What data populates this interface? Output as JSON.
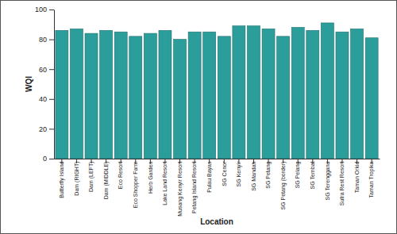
{
  "chart_data": {
    "type": "bar",
    "x_label": "Location",
    "y_label": "WQI",
    "categories": [
      "Butterfly Island",
      "Dam (RIGHT)",
      "Dam (LEFT)",
      "Dam (MIDDLE)",
      "Eco Resort",
      "Eco Shopper Farm",
      "Herb Garden",
      "Lake Land Resort",
      "Musang Kenyir Resort",
      "Petang Island Resort",
      "Pulau Bayas",
      "SG Cenor",
      "SG Kenyir",
      "SG Mandah",
      "SG Petang",
      "SG Petang (border)",
      "SG Pelang",
      "SG Tembat",
      "SG Terengganu",
      "Sutra Rest Resort",
      "Taman Orkid",
      "Taman Tropika"
    ],
    "values": [
      86,
      87,
      84,
      86,
      85,
      82,
      84,
      86,
      80,
      85,
      85,
      82,
      89,
      89,
      87,
      82,
      88,
      86,
      91,
      85,
      87,
      81
    ],
    "color": "#2b9e9c",
    "ylim": [
      0,
      100
    ],
    "yticks": [
      0,
      20,
      40,
      60,
      80,
      100
    ],
    "grid": false
  }
}
